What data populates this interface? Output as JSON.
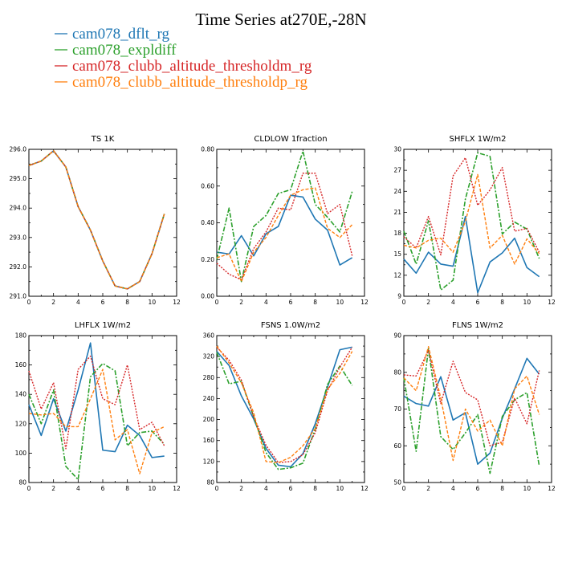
{
  "figure": {
    "title": "Time Series at270E,-28N",
    "legend": [
      {
        "name": "cam078_dflt_rg",
        "color": "#1f77b4"
      },
      {
        "name": "cam078_expldiff",
        "color": "#2ca02c"
      },
      {
        "name": "cam078_clubb_altitude_thresholdm_rg",
        "color": "#d62728"
      },
      {
        "name": "cam078_clubb_altitude_thresholdp_rg",
        "color": "#ff7f0e"
      }
    ]
  },
  "chart_data": [
    {
      "type": "line",
      "title": "TS   1K",
      "xlim": [
        0,
        12
      ],
      "xticks": [
        0,
        2,
        4,
        6,
        8,
        10,
        12
      ],
      "ylim": [
        291,
        296
      ],
      "yticks": [
        291,
        292,
        293,
        294,
        295,
        296
      ],
      "ytick_labels": [
        "291.0",
        "292.0",
        "293.0",
        "294.0",
        "295.0",
        "296.0"
      ],
      "x": [
        0,
        1,
        2,
        3,
        4,
        5,
        6,
        7,
        8,
        9,
        10,
        11
      ],
      "series": [
        {
          "name": "cam078_dflt_rg",
          "values": [
            295.45,
            295.6,
            295.95,
            295.4,
            294.05,
            293.25,
            292.2,
            291.35,
            291.25,
            291.5,
            292.45,
            293.8
          ]
        },
        {
          "name": "cam078_expldiff",
          "values": [
            295.45,
            295.6,
            295.95,
            295.4,
            294.05,
            293.25,
            292.2,
            291.35,
            291.25,
            291.5,
            292.45,
            293.8
          ]
        },
        {
          "name": "cam078_clubb_altitude_thresholdm_rg",
          "values": [
            295.45,
            295.6,
            295.95,
            295.4,
            294.05,
            293.25,
            292.2,
            291.35,
            291.25,
            291.5,
            292.45,
            293.8
          ]
        },
        {
          "name": "cam078_clubb_altitude_thresholdp_rg",
          "values": [
            295.45,
            295.6,
            295.95,
            295.4,
            294.05,
            293.25,
            292.2,
            291.35,
            291.25,
            291.5,
            292.45,
            293.8
          ]
        }
      ]
    },
    {
      "type": "line",
      "title": "CLDLOW   1fraction",
      "xlim": [
        0,
        12
      ],
      "xticks": [
        0,
        2,
        4,
        6,
        8,
        10,
        12
      ],
      "ylim": [
        0,
        0.8
      ],
      "yticks": [
        0,
        0.2,
        0.4,
        0.6,
        0.8
      ],
      "ytick_labels": [
        "0.00",
        "0.20",
        "0.40",
        "0.60",
        "0.80"
      ],
      "x": [
        0,
        1,
        2,
        3,
        4,
        5,
        6,
        7,
        8,
        9,
        10,
        11
      ],
      "series": [
        {
          "name": "cam078_dflt_rg",
          "values": [
            0.24,
            0.23,
            0.33,
            0.22,
            0.34,
            0.38,
            0.55,
            0.54,
            0.42,
            0.36,
            0.17,
            0.21
          ]
        },
        {
          "name": "cam078_expldiff",
          "values": [
            0.2,
            0.48,
            0.08,
            0.38,
            0.44,
            0.56,
            0.58,
            0.79,
            0.5,
            0.43,
            0.35,
            0.57
          ]
        },
        {
          "name": "cam078_clubb_altitude_thresholdm_rg",
          "values": [
            0.18,
            0.12,
            0.09,
            0.26,
            0.35,
            0.48,
            0.47,
            0.67,
            0.67,
            0.45,
            0.5,
            0.22
          ]
        },
        {
          "name": "cam078_clubb_altitude_thresholdp_rg",
          "values": [
            0.21,
            0.23,
            0.08,
            0.24,
            0.32,
            0.44,
            0.55,
            0.58,
            0.59,
            0.37,
            0.32,
            0.39
          ]
        }
      ]
    },
    {
      "type": "line",
      "title": "SHFLX   1W/m2",
      "xlim": [
        0,
        12
      ],
      "xticks": [
        0,
        2,
        4,
        6,
        8,
        10,
        12
      ],
      "ylim": [
        9,
        30
      ],
      "yticks": [
        9,
        12,
        15,
        18,
        21,
        24,
        27,
        30
      ],
      "ytick_labels": [
        "9",
        "12",
        "15",
        "18",
        "21",
        "24",
        "27",
        "30"
      ],
      "x": [
        0,
        1,
        2,
        3,
        4,
        5,
        6,
        7,
        8,
        9,
        10,
        11
      ],
      "series": [
        {
          "name": "cam078_dflt_rg",
          "values": [
            14.3,
            12.3,
            15.3,
            13.6,
            13.3,
            20.4,
            9.5,
            13.9,
            15.2,
            17.3,
            13.1,
            11.8
          ]
        },
        {
          "name": "cam078_expldiff",
          "values": [
            18.3,
            13.6,
            19.8,
            9.9,
            11.3,
            22.9,
            29.5,
            29,
            17.9,
            19.6,
            18.6,
            14.4
          ]
        },
        {
          "name": "cam078_clubb_altitude_thresholdm_rg",
          "values": [
            17.5,
            15.9,
            20.4,
            14.9,
            26.2,
            28.8,
            22,
            24.2,
            27.4,
            18.3,
            18.7,
            15.3
          ]
        },
        {
          "name": "cam078_clubb_altitude_thresholdp_rg",
          "values": [
            16.3,
            15.9,
            17,
            17.3,
            15.3,
            19.7,
            26.4,
            15.9,
            17.7,
            13.6,
            17.2,
            15.1
          ]
        }
      ]
    },
    {
      "type": "line",
      "title": "LHFLX   1W/m2",
      "xlim": [
        0,
        12
      ],
      "xticks": [
        0,
        2,
        4,
        6,
        8,
        10,
        12
      ],
      "ylim": [
        80,
        180
      ],
      "yticks": [
        80,
        100,
        120,
        140,
        160,
        180
      ],
      "ytick_labels": [
        "80",
        "100",
        "120",
        "140",
        "160",
        "180"
      ],
      "x": [
        0,
        1,
        2,
        3,
        4,
        5,
        6,
        7,
        8,
        9,
        10,
        11
      ],
      "series": [
        {
          "name": "cam078_dflt_rg",
          "values": [
            133,
            112,
            137,
            115,
            143,
            175,
            102,
            101,
            119,
            112,
            97,
            98
          ]
        },
        {
          "name": "cam078_expldiff",
          "values": [
            140,
            120,
            143,
            91,
            82,
            152,
            161,
            156,
            105,
            114,
            115,
            106
          ]
        },
        {
          "name": "cam078_clubb_altitude_thresholdm_rg",
          "values": [
            156,
            130,
            148,
            103,
            157,
            166,
            137,
            133,
            160,
            116,
            121,
            105
          ]
        },
        {
          "name": "cam078_clubb_altitude_thresholdp_rg",
          "values": [
            127,
            126,
            127,
            118,
            118,
            137,
            157,
            109,
            116,
            86,
            114,
            118
          ]
        }
      ]
    },
    {
      "type": "line",
      "title": "FSNS   1.0W/m2",
      "xlim": [
        0,
        12
      ],
      "xticks": [
        0,
        2,
        4,
        6,
        8,
        10,
        12
      ],
      "ylim": [
        80,
        360
      ],
      "yticks": [
        80,
        120,
        160,
        200,
        240,
        280,
        320,
        360
      ],
      "ytick_labels": [
        "80",
        "120",
        "160",
        "200",
        "240",
        "280",
        "320",
        "360"
      ],
      "x": [
        0,
        1,
        2,
        3,
        4,
        5,
        6,
        7,
        8,
        9,
        10,
        11
      ],
      "series": [
        {
          "name": "cam078_dflt_rg",
          "values": [
            330,
            303,
            245,
            201,
            145,
            113,
            110,
            135,
            192,
            262,
            333,
            338
          ]
        },
        {
          "name": "cam078_expldiff",
          "values": [
            328,
            268,
            273,
            205,
            137,
            105,
            108,
            117,
            182,
            267,
            302,
            265
          ]
        },
        {
          "name": "cam078_clubb_altitude_thresholdm_rg",
          "values": [
            338,
            313,
            275,
            205,
            151,
            118,
            120,
            133,
            175,
            255,
            300,
            338
          ]
        },
        {
          "name": "cam078_clubb_altitude_thresholdp_rg",
          "values": [
            340,
            308,
            270,
            213,
            120,
            118,
            128,
            150,
            183,
            258,
            288,
            330
          ]
        }
      ]
    },
    {
      "type": "line",
      "title": "FLNS   1W/m2",
      "xlim": [
        0,
        12
      ],
      "xticks": [
        0,
        2,
        4,
        6,
        8,
        10,
        12
      ],
      "ylim": [
        50,
        90
      ],
      "yticks": [
        50,
        60,
        70,
        80,
        90
      ],
      "ytick_labels": [
        "50",
        "60",
        "70",
        "80",
        "90"
      ],
      "x": [
        0,
        1,
        2,
        3,
        4,
        5,
        6,
        7,
        8,
        9,
        10,
        11
      ],
      "series": [
        {
          "name": "cam078_dflt_rg",
          "values": [
            73.5,
            71.5,
            70.8,
            78.8,
            67,
            69,
            55,
            58,
            67.5,
            75.5,
            83.8,
            79.5
          ]
        },
        {
          "name": "cam078_expldiff",
          "values": [
            78.5,
            58.5,
            86.5,
            62.5,
            59,
            63.5,
            68.5,
            52.5,
            68,
            72.5,
            74.5,
            54.5
          ]
        },
        {
          "name": "cam078_clubb_altitude_thresholdm_rg",
          "values": [
            79.3,
            79,
            86,
            71.5,
            83,
            74.5,
            72.5,
            60,
            61,
            73,
            66,
            80.5
          ]
        },
        {
          "name": "cam078_clubb_altitude_thresholdp_rg",
          "values": [
            78.5,
            75,
            87,
            73,
            56,
            70,
            64,
            67,
            60,
            75.5,
            79,
            68.5
          ]
        }
      ]
    }
  ]
}
